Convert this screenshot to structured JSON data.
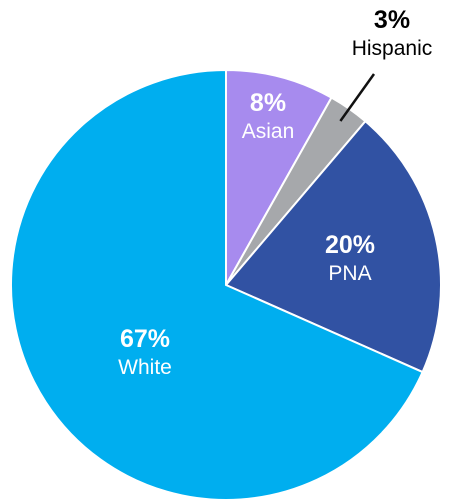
{
  "chart_data": {
    "type": "pie",
    "slices": [
      {
        "name": "Asian",
        "value": 8,
        "percent_label": "8%",
        "color": "#a78bee",
        "text_color": "#ffffff"
      },
      {
        "name": "Hispanic",
        "value": 3,
        "percent_label": "3%",
        "color": "#a6a8ab",
        "text_color": "#000000"
      },
      {
        "name": "PNA",
        "value": 20,
        "percent_label": "20%",
        "color": "#3152a3",
        "text_color": "#ffffff"
      },
      {
        "name": "White",
        "value": 67,
        "percent_label": "67%",
        "color": "#00aeef",
        "text_color": "#ffffff"
      }
    ],
    "start_angle": "12 o'clock",
    "direction": "clockwise",
    "slice_borders": "#ffffff"
  }
}
